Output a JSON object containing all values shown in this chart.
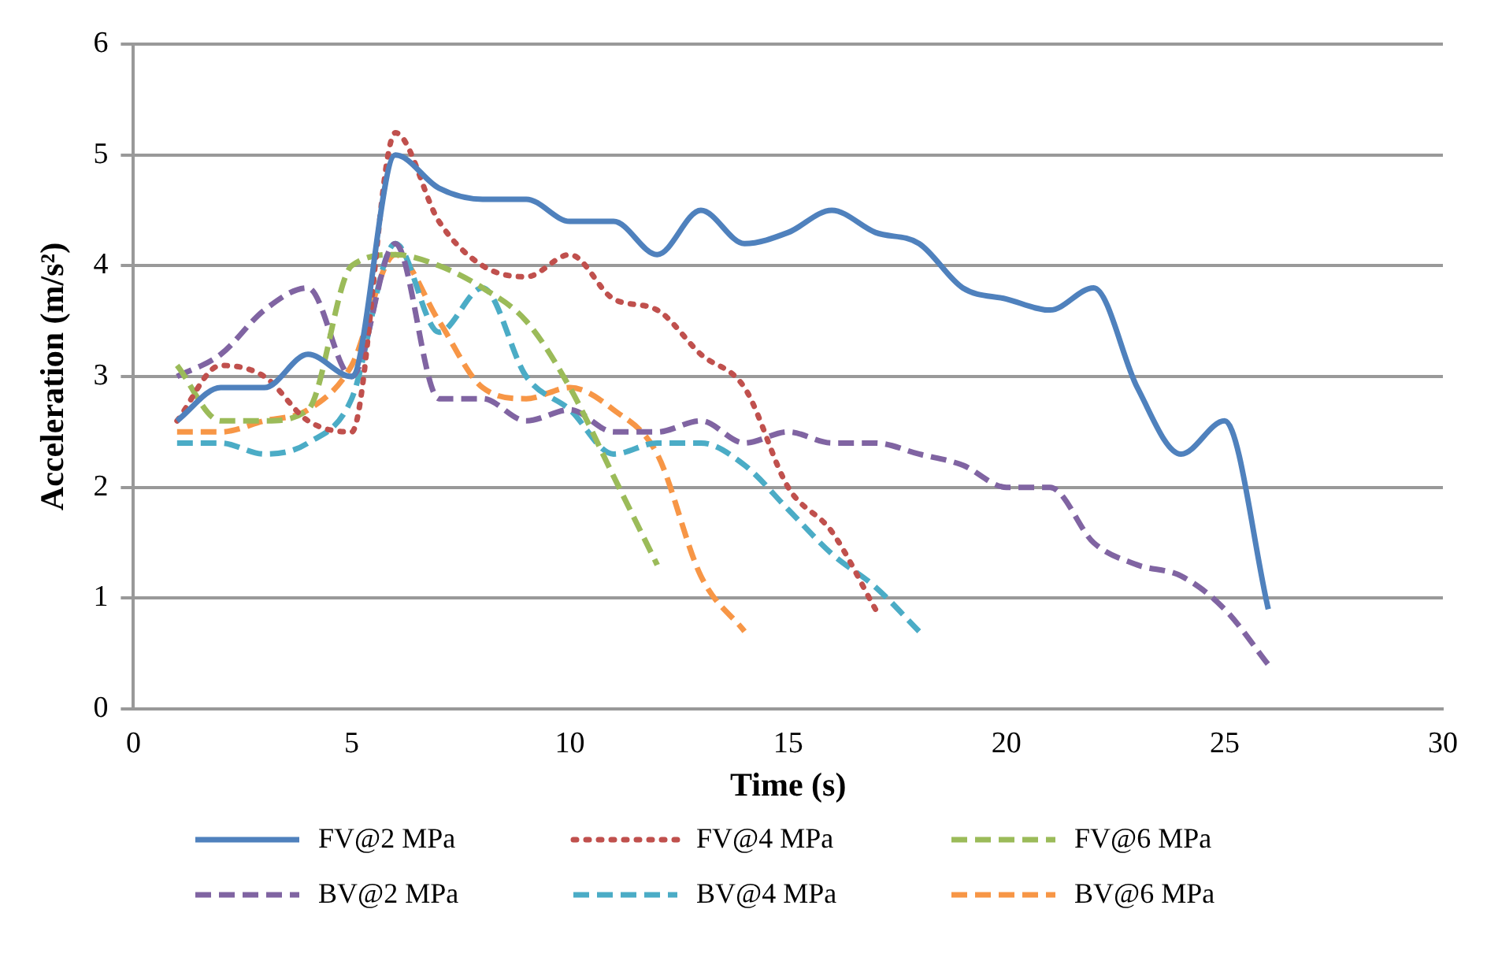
{
  "chart_data": {
    "type": "line",
    "xlabel": "Time (s)",
    "ylabel": "Acceleration (m/s²)",
    "x": [
      1,
      2,
      3,
      4,
      5,
      6,
      7,
      8,
      9,
      10,
      11,
      12,
      13,
      14,
      15,
      16,
      17,
      18,
      19,
      20,
      21,
      22,
      23,
      24,
      25,
      26
    ],
    "xlim": [
      0,
      30
    ],
    "xticks": [
      0,
      5,
      10,
      15,
      20,
      25,
      30
    ],
    "ylim": [
      0,
      6
    ],
    "yticks": [
      0,
      1,
      2,
      3,
      4,
      5,
      6
    ],
    "grid": "y",
    "legend": "bottom",
    "marker": "none",
    "series": [
      {
        "name": "FV@2 MPa",
        "color": "#4f81bd",
        "line_style": "solid",
        "values": [
          2.6,
          2.9,
          2.9,
          3.2,
          3.0,
          5.0,
          4.7,
          4.6,
          4.6,
          4.4,
          4.4,
          4.1,
          4.5,
          4.2,
          4.3,
          4.5,
          4.3,
          4.2,
          3.8,
          3.7,
          3.6,
          3.8,
          2.9,
          2.3,
          2.6,
          0.9
        ]
      },
      {
        "name": "FV@4 MPa",
        "color": "#c0504d",
        "line_style": "dotted",
        "x": [
          1,
          2,
          3,
          4,
          5,
          6,
          7,
          8,
          9,
          10,
          11,
          12,
          13,
          14,
          15,
          16,
          17
        ],
        "values": [
          2.6,
          3.1,
          3.0,
          2.6,
          2.5,
          5.2,
          4.4,
          4.0,
          3.9,
          4.1,
          3.7,
          3.6,
          3.2,
          2.9,
          2.0,
          1.6,
          0.9
        ]
      },
      {
        "name": "FV@6 MPa",
        "color": "#9bbb59",
        "line_style": "dashed",
        "x": [
          1,
          2,
          3,
          4,
          5,
          6,
          7,
          8,
          9,
          10,
          11,
          12
        ],
        "values": [
          3.1,
          2.6,
          2.6,
          2.7,
          4.0,
          4.1,
          4.0,
          3.8,
          3.5,
          2.9,
          2.1,
          1.3
        ]
      },
      {
        "name": "BV@2 MPa",
        "color": "#8064a2",
        "line_style": "dashed",
        "values": [
          3.0,
          3.2,
          3.6,
          3.8,
          3.0,
          4.2,
          2.8,
          2.8,
          2.6,
          2.7,
          2.5,
          2.5,
          2.6,
          2.4,
          2.5,
          2.4,
          2.4,
          2.3,
          2.2,
          2.0,
          2.0,
          1.5,
          1.3,
          1.2,
          0.9,
          0.4
        ]
      },
      {
        "name": "BV@4 MPa",
        "color": "#4bacc6",
        "line_style": "dashed",
        "x": [
          1,
          2,
          3,
          4,
          5,
          6,
          7,
          8,
          9,
          10,
          11,
          12,
          13,
          14,
          15,
          16,
          17,
          18
        ],
        "values": [
          2.4,
          2.4,
          2.3,
          2.4,
          2.8,
          4.2,
          3.4,
          3.8,
          3.0,
          2.7,
          2.3,
          2.4,
          2.4,
          2.2,
          1.8,
          1.4,
          1.1,
          0.7
        ]
      },
      {
        "name": "BV@6 MPa",
        "color": "#f79646",
        "line_style": "dashed",
        "x": [
          1,
          2,
          3,
          4,
          5,
          6,
          7,
          8,
          9,
          10,
          11,
          12,
          13,
          14
        ],
        "values": [
          2.5,
          2.5,
          2.6,
          2.7,
          3.1,
          4.1,
          3.5,
          2.9,
          2.8,
          2.9,
          2.7,
          2.3,
          1.2,
          0.7
        ]
      }
    ]
  }
}
